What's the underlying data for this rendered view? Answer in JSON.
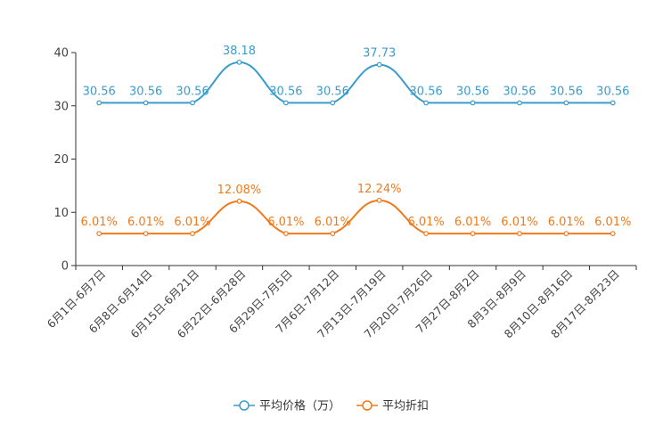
{
  "chart_data": {
    "type": "line",
    "categories": [
      "6月1日-6月7日",
      "6月8日-6月14日",
      "6月15日-6月21日",
      "6月22日-6月28日",
      "6月29日-7月5日",
      "7月6日-7月12日",
      "7月13日-7月19日",
      "7月20日-7月26日",
      "7月27日-8月2日",
      "8月3日-8月9日",
      "8月10日-8月16日",
      "8月17日-8月23日"
    ],
    "ylim": [
      0,
      40
    ],
    "yticks": [
      0,
      10,
      20,
      30,
      40
    ],
    "grid": false,
    "legend_position": "bottom-center",
    "series": [
      {
        "name": "平均价格（万）",
        "color": "#3b9ccc",
        "values": [
          30.56,
          30.56,
          30.56,
          38.18,
          30.56,
          30.56,
          37.73,
          30.56,
          30.56,
          30.56,
          30.56,
          30.56
        ],
        "labels": [
          "30.56",
          "30.56",
          "30.56",
          "38.18",
          "30.56",
          "30.56",
          "37.73",
          "30.56",
          "30.56",
          "30.56",
          "30.56",
          "30.56"
        ]
      },
      {
        "name": "平均折扣",
        "color": "#f07a1a",
        "values": [
          6.01,
          6.01,
          6.01,
          12.08,
          6.01,
          6.01,
          12.24,
          6.01,
          6.01,
          6.01,
          6.01,
          6.01
        ],
        "labels": [
          "6.01%",
          "6.01%",
          "6.01%",
          "12.08%",
          "6.01%",
          "6.01%",
          "12.24%",
          "6.01%",
          "6.01%",
          "6.01%",
          "6.01%",
          "6.01%"
        ]
      }
    ]
  }
}
